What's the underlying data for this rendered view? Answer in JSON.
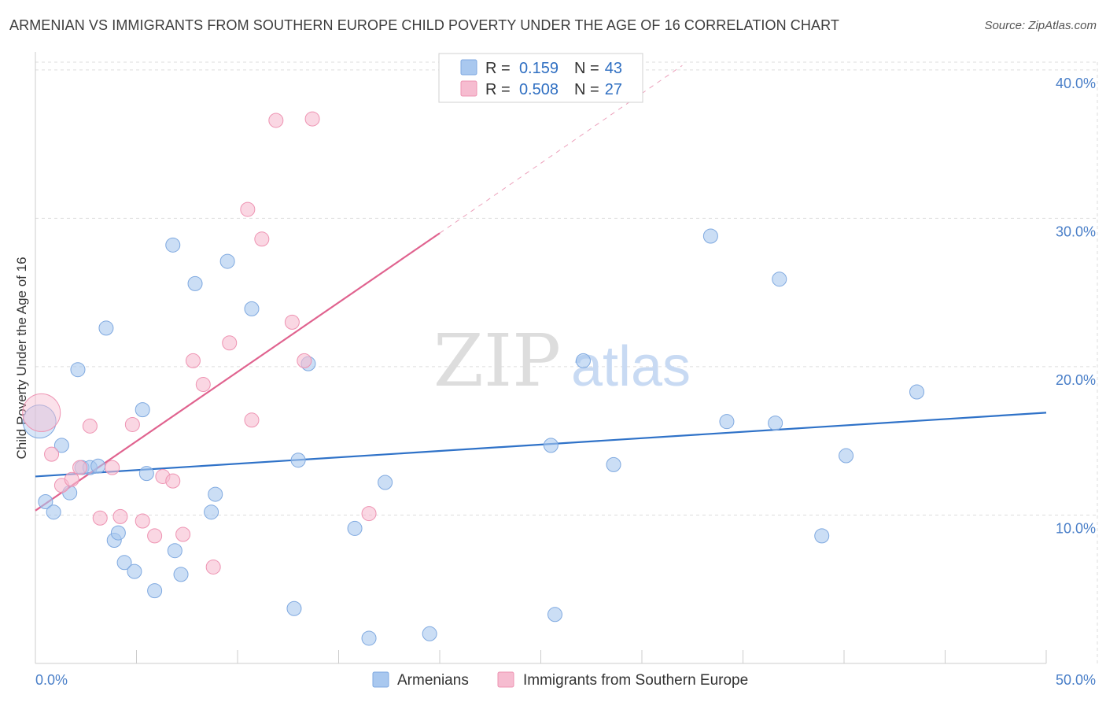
{
  "title": "ARMENIAN VS IMMIGRANTS FROM SOUTHERN EUROPE CHILD POVERTY UNDER THE AGE OF 16 CORRELATION CHART",
  "source": "Source: ZipAtlas.com",
  "watermark": {
    "zip": "ZIP",
    "atlas": "atlas"
  },
  "legend": {
    "r_label": "R =",
    "n_label": "N =",
    "series": [
      {
        "r": "0.159",
        "n": "43"
      },
      {
        "r": "0.508",
        "n": "27"
      }
    ]
  },
  "chart_data": {
    "type": "scatter",
    "title": "ARMENIAN VS IMMIGRANTS FROM SOUTHERN EUROPE CHILD POVERTY UNDER THE AGE OF 16 CORRELATION CHART",
    "xlabel": "",
    "ylabel": "Child Poverty Under the Age of 16",
    "xlim": [
      0,
      50
    ],
    "ylim": [
      0,
      41
    ],
    "x_tick_labels": [
      "0.0%",
      "50.0%"
    ],
    "y_ticks": [
      10,
      20,
      30,
      40
    ],
    "y_tick_labels": [
      "10.0%",
      "20.0%",
      "30.0%",
      "40.0%"
    ],
    "grid": true,
    "legend_position": "top-center",
    "series": [
      {
        "name": "Armenians",
        "color": "#a9c8ef",
        "edge": "#7fa9e0",
        "line_color": "#2f72c8",
        "trend": {
          "x0": 0,
          "y0": 12.6,
          "x1": 50,
          "y1": 16.9
        },
        "points": [
          [
            0.2,
            16.3
          ],
          [
            0.5,
            10.9
          ],
          [
            0.9,
            10.2
          ],
          [
            1.3,
            14.7
          ],
          [
            1.7,
            11.5
          ],
          [
            2.1,
            19.8
          ],
          [
            2.3,
            13.2
          ],
          [
            2.7,
            13.2
          ],
          [
            3.1,
            13.3
          ],
          [
            3.5,
            22.6
          ],
          [
            3.9,
            8.3
          ],
          [
            4.1,
            8.8
          ],
          [
            4.4,
            6.8
          ],
          [
            4.9,
            6.2
          ],
          [
            5.3,
            17.1
          ],
          [
            5.5,
            12.8
          ],
          [
            5.9,
            4.9
          ],
          [
            6.8,
            28.2
          ],
          [
            6.9,
            7.6
          ],
          [
            7.2,
            6.0
          ],
          [
            7.9,
            25.6
          ],
          [
            8.7,
            10.2
          ],
          [
            8.9,
            11.4
          ],
          [
            9.5,
            27.1
          ],
          [
            10.7,
            23.9
          ],
          [
            12.8,
            3.7
          ],
          [
            13.0,
            13.7
          ],
          [
            13.5,
            20.2
          ],
          [
            15.8,
            9.1
          ],
          [
            16.5,
            1.7
          ],
          [
            17.3,
            12.2
          ],
          [
            19.5,
            2.0
          ],
          [
            25.5,
            14.7
          ],
          [
            25.7,
            3.3
          ],
          [
            27.1,
            20.4
          ],
          [
            28.6,
            13.4
          ],
          [
            33.4,
            28.8
          ],
          [
            34.2,
            16.3
          ],
          [
            36.6,
            16.2
          ],
          [
            36.8,
            25.9
          ],
          [
            38.9,
            8.6
          ],
          [
            40.1,
            14.0
          ],
          [
            43.6,
            18.3
          ]
        ]
      },
      {
        "name": "Immigrants from Southern Europe",
        "color": "#f6bcd0",
        "edge": "#ee93b2",
        "line_color": "#e0638f",
        "trend": {
          "x0": 0,
          "y0": 10.3,
          "x1": 20,
          "y1": 29.0
        },
        "trend_ext": {
          "x0": 20,
          "y0": 29.0,
          "x1": 32,
          "y1": 40.3
        },
        "points": [
          [
            0.3,
            16.9
          ],
          [
            0.8,
            14.1
          ],
          [
            1.3,
            12.0
          ],
          [
            1.8,
            12.4
          ],
          [
            2.2,
            13.2
          ],
          [
            2.7,
            16.0
          ],
          [
            3.2,
            9.8
          ],
          [
            3.8,
            13.2
          ],
          [
            4.2,
            9.9
          ],
          [
            4.8,
            16.1
          ],
          [
            5.3,
            9.6
          ],
          [
            5.9,
            8.6
          ],
          [
            6.3,
            12.6
          ],
          [
            6.8,
            12.3
          ],
          [
            7.3,
            8.7
          ],
          [
            7.8,
            20.4
          ],
          [
            8.3,
            18.8
          ],
          [
            8.8,
            6.5
          ],
          [
            9.6,
            21.6
          ],
          [
            10.5,
            30.6
          ],
          [
            10.7,
            16.4
          ],
          [
            11.2,
            28.6
          ],
          [
            11.9,
            36.6
          ],
          [
            12.7,
            23.0
          ],
          [
            13.3,
            20.4
          ],
          [
            13.7,
            36.7
          ],
          [
            16.5,
            10.1
          ]
        ]
      }
    ]
  }
}
